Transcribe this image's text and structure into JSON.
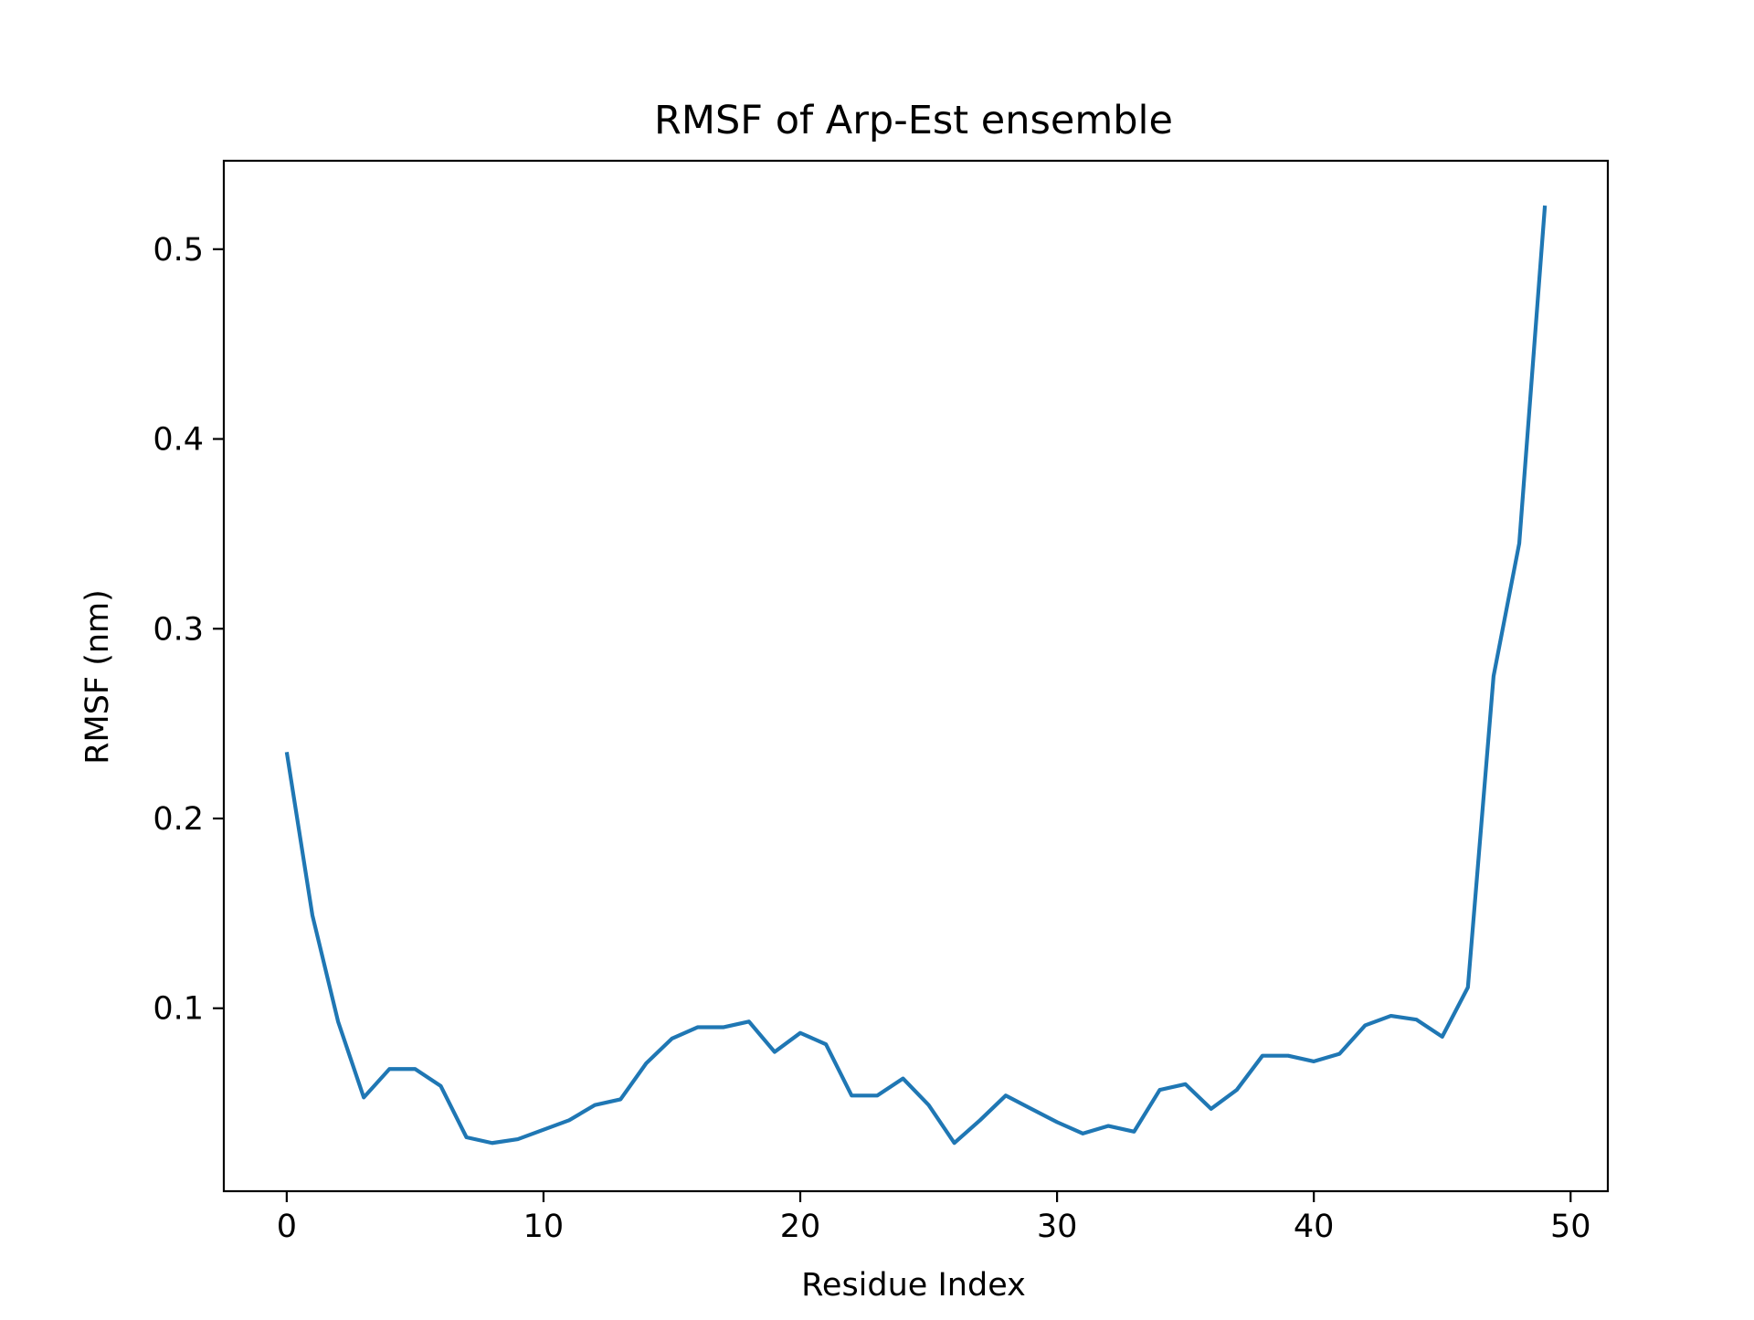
{
  "chart_data": {
    "type": "line",
    "title": "RMSF of Arp-Est ensemble",
    "xlabel": "Residue Index",
    "ylabel": "RMSF (nm)",
    "xlim": [
      -2.45,
      51.45
    ],
    "ylim": [
      0.0036,
      0.5466
    ],
    "xticks": [
      0,
      10,
      20,
      30,
      40,
      50
    ],
    "yticks": [
      0.1,
      0.2,
      0.3,
      0.4,
      0.5
    ],
    "xtick_labels": [
      "0",
      "10",
      "20",
      "30",
      "40",
      "50"
    ],
    "ytick_labels": [
      "0.1",
      "0.2",
      "0.3",
      "0.4",
      "0.5"
    ],
    "grid": false,
    "series": [
      {
        "color": "#1f77b4",
        "x": [
          0,
          1,
          2,
          3,
          4,
          5,
          6,
          7,
          8,
          9,
          10,
          11,
          12,
          13,
          14,
          15,
          16,
          17,
          18,
          19,
          20,
          21,
          22,
          23,
          24,
          25,
          26,
          27,
          28,
          29,
          30,
          31,
          32,
          33,
          34,
          35,
          36,
          37,
          38,
          39,
          40,
          41,
          42,
          43,
          44,
          45,
          46,
          47,
          48,
          49
        ],
        "y": [
          0.235,
          0.149,
          0.093,
          0.053,
          0.068,
          0.068,
          0.059,
          0.032,
          0.029,
          0.031,
          0.036,
          0.041,
          0.049,
          0.052,
          0.071,
          0.084,
          0.09,
          0.09,
          0.093,
          0.077,
          0.087,
          0.081,
          0.054,
          0.054,
          0.063,
          0.049,
          0.029,
          0.041,
          0.054,
          0.047,
          0.04,
          0.034,
          0.038,
          0.035,
          0.057,
          0.06,
          0.047,
          0.057,
          0.075,
          0.075,
          0.072,
          0.076,
          0.091,
          0.096,
          0.094,
          0.085,
          0.111,
          0.275,
          0.345,
          0.523
        ]
      }
    ]
  }
}
